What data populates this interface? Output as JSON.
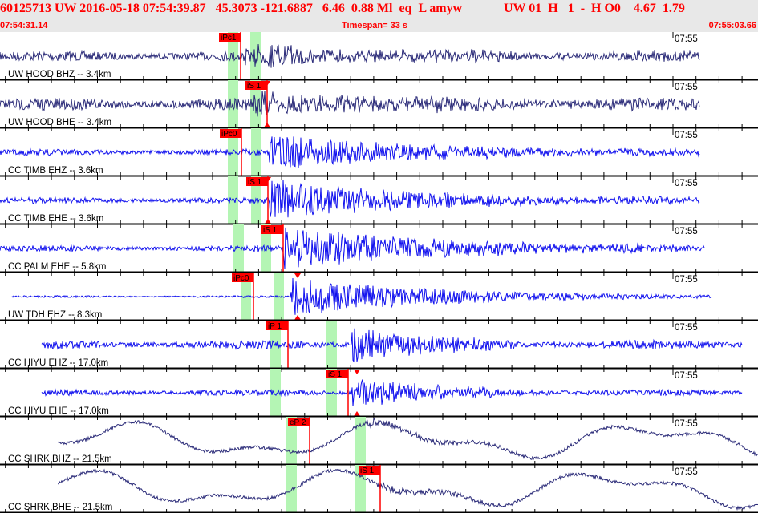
{
  "header": {
    "event_line_left": "60125713 UW 2016-05-18 07:54:39.87   45.3073 -121.6887   6.46  0.88 Ml  eq  L amyw",
    "event_line_right": "UW 01  H   1  -  H O0    4.67  1.79",
    "start_time": "07:54:31.14",
    "timespan": "Timespan=  33 s",
    "end_time": "07:55:03.66"
  },
  "colors": {
    "header_text": "#ff0000",
    "pick": "#ff0000",
    "window": "#b4f5b4",
    "trace_dark": "#2a2a78",
    "trace_blue": "#1010ee",
    "header_bg": "#e8e8e8"
  },
  "minute_label": "07:55",
  "channels": [
    {
      "label": "UW HOOD BHZ -- 3.4km",
      "pick": "iPc1",
      "color": "trace_dark"
    },
    {
      "label": "UW HOOD BHE -- 3.4km",
      "pick": "iS 1",
      "color": "trace_dark"
    },
    {
      "label": "CC TIMB EHZ -- 3.6km",
      "pick": "iPc0",
      "color": "trace_blue"
    },
    {
      "label": "CC TIMB EHE -- 3.6km",
      "pick": "iS 1",
      "color": "trace_blue"
    },
    {
      "label": "CC PALM EHE -- 5.8km",
      "pick": "iS 1",
      "color": "trace_blue"
    },
    {
      "label": "UW TDH EHZ -- 8.3km",
      "pick": "iPc0",
      "color": "trace_blue"
    },
    {
      "label": "CC HIYU EHZ -- 17.0km",
      "pick": "iP 1",
      "color": "trace_blue"
    },
    {
      "label": "CC HIYU EHE -- 17.0km",
      "pick": "iS 1",
      "color": "trace_blue"
    },
    {
      "label": "CC SHRK BHZ -- 21.5km",
      "pick": "eP 2",
      "color": "trace_dark"
    },
    {
      "label": "CC SHRK BHE -- 21.5km",
      "pick": "iS 1",
      "color": "trace_dark"
    }
  ]
}
